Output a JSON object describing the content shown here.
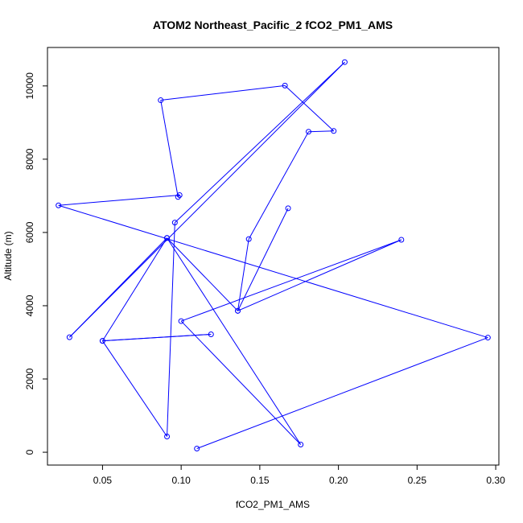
{
  "chart_data": {
    "type": "line",
    "title": "ATOM2 Northeast_Pacific_2 fCO2_PM1_AMS",
    "xlabel": "fCO2_PM1_AMS",
    "ylabel": "Altitude (m)",
    "xlim": [
      0.015,
      0.302
    ],
    "ylim": [
      -350,
      11050
    ],
    "x_ticks": [
      0.05,
      0.1,
      0.15,
      0.2,
      0.25,
      0.3
    ],
    "x_tick_labels": [
      "0.05",
      "0.10",
      "0.15",
      "0.20",
      "0.25",
      "0.30"
    ],
    "y_ticks": [
      0,
      2000,
      4000,
      6000,
      8000,
      10000
    ],
    "y_tick_labels": [
      "0",
      "2000",
      "4000",
      "6000",
      "8000",
      "10000"
    ],
    "grid": false,
    "legend": "none",
    "series": [
      {
        "color": "#0000ff",
        "marker": "open-circle",
        "points": [
          {
            "x": 0.11,
            "y": 100
          },
          {
            "x": 0.295,
            "y": 3130
          },
          {
            "x": 0.022,
            "y": 6740
          },
          {
            "x": 0.099,
            "y": 7020
          },
          {
            "x": 0.098,
            "y": 6970
          },
          {
            "x": 0.087,
            "y": 9610
          },
          {
            "x": 0.166,
            "y": 10010
          },
          {
            "x": 0.197,
            "y": 8770
          },
          {
            "x": 0.181,
            "y": 8750
          },
          {
            "x": 0.143,
            "y": 5820
          },
          {
            "x": 0.136,
            "y": 3860
          },
          {
            "x": 0.24,
            "y": 5800
          },
          {
            "x": 0.1,
            "y": 3580
          },
          {
            "x": 0.176,
            "y": 210
          },
          {
            "x": 0.091,
            "y": 5850
          },
          {
            "x": 0.029,
            "y": 3140
          },
          {
            "x": 0.204,
            "y": 10650
          },
          {
            "x": 0.096,
            "y": 6270
          },
          {
            "x": 0.091,
            "y": 430
          },
          {
            "x": 0.05,
            "y": 3040
          },
          {
            "x": 0.119,
            "y": 3220
          },
          {
            "x": 0.05,
            "y": 3040
          },
          {
            "x": 0.091,
            "y": 5850
          },
          {
            "x": 0.136,
            "y": 3860
          },
          {
            "x": 0.168,
            "y": 6660
          }
        ]
      }
    ]
  }
}
